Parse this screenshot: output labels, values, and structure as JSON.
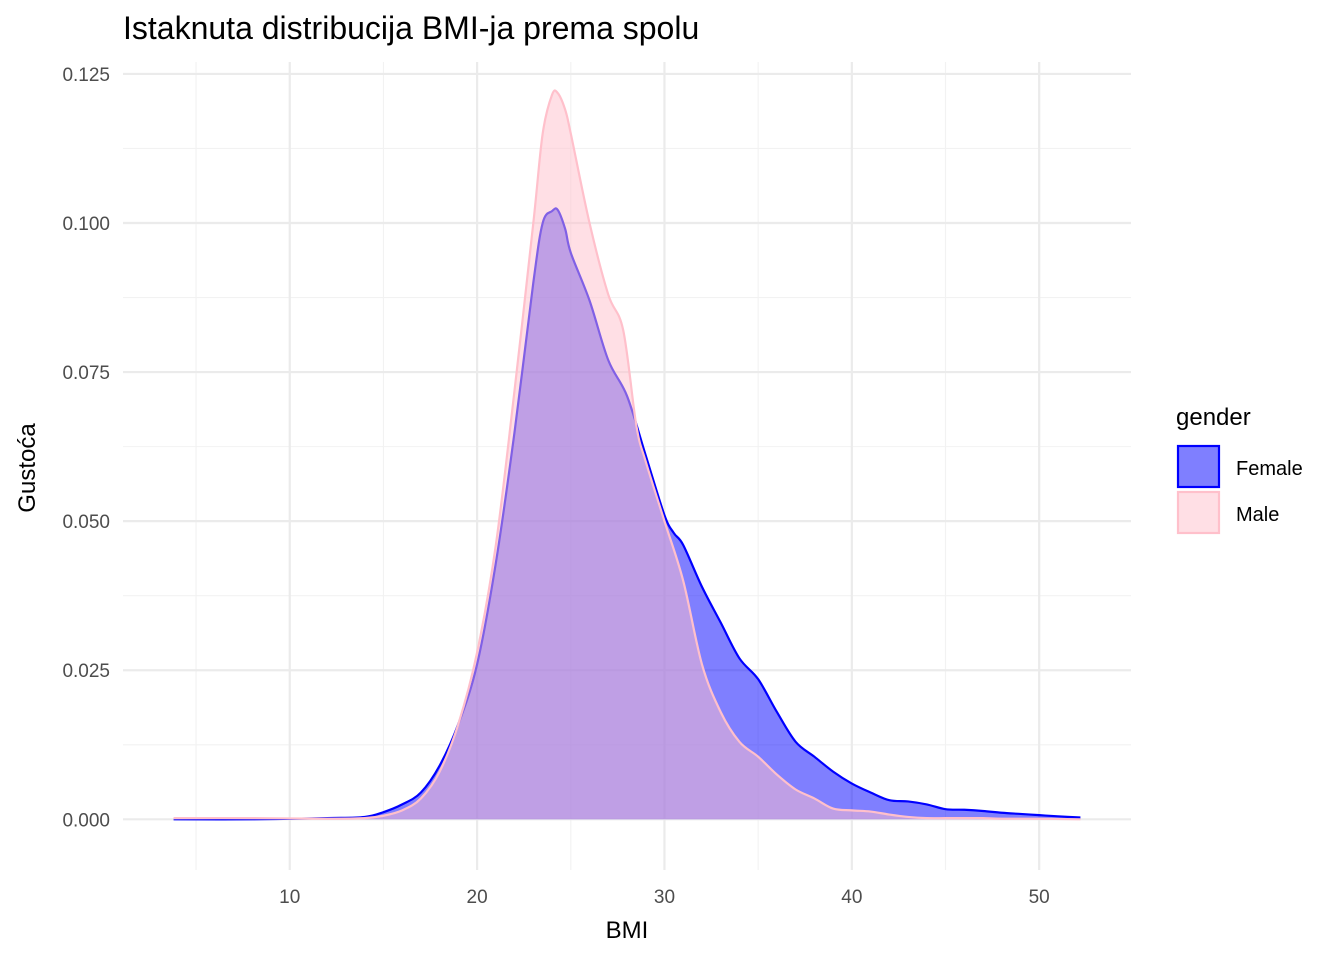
{
  "chart_data": {
    "type": "area",
    "title": "Istaknuta distribucija BMI-ja prema spolu",
    "xlabel": "BMI",
    "ylabel": "Gustoća",
    "xlim": [
      1.1,
      54.9
    ],
    "ylim": [
      -0.0085,
      0.127
    ],
    "x_ticks": [
      10,
      20,
      30,
      40,
      50
    ],
    "x_tick_labels": [
      "10",
      "20",
      "30",
      "40",
      "50"
    ],
    "y_ticks": [
      0,
      0.025,
      0.05,
      0.075,
      0.1,
      0.125
    ],
    "y_tick_labels": [
      "0.000",
      "0.025",
      "0.050",
      "0.075",
      "0.100",
      "0.125"
    ],
    "grid": true,
    "legend": {
      "title": "gender",
      "position": "right"
    },
    "series": [
      {
        "name": "Female",
        "color": "#0000ff",
        "fill": "#0000ff",
        "fill_opacity": 0.5,
        "x": [
          3.8,
          8,
          12,
          14,
          15,
          16,
          17,
          18,
          19,
          20,
          21,
          22,
          23,
          23.5,
          24,
          24.3,
          24.7,
          25,
          26,
          27,
          28,
          29,
          30,
          30.5,
          31,
          32,
          33,
          34,
          35,
          36,
          37,
          38,
          39,
          40,
          41,
          42,
          43,
          44,
          45,
          46,
          47,
          48,
          49,
          50,
          51,
          52.2
        ],
        "y": [
          0.0,
          0.0,
          0.0002,
          0.0004,
          0.0012,
          0.0025,
          0.0045,
          0.009,
          0.016,
          0.026,
          0.043,
          0.065,
          0.09,
          0.1,
          0.102,
          0.1022,
          0.099,
          0.095,
          0.087,
          0.077,
          0.071,
          0.061,
          0.051,
          0.048,
          0.046,
          0.039,
          0.033,
          0.027,
          0.0235,
          0.018,
          0.013,
          0.0105,
          0.008,
          0.006,
          0.0045,
          0.0032,
          0.003,
          0.0025,
          0.0017,
          0.0016,
          0.0014,
          0.0011,
          0.0009,
          0.0007,
          0.0005,
          0.0003
        ]
      },
      {
        "name": "Male",
        "color": "#ffc0cb",
        "fill": "#ffc0cb",
        "fill_opacity": 0.5,
        "x": [
          3.8,
          8,
          12,
          14,
          15,
          16,
          17,
          18,
          19,
          20,
          21,
          22,
          23,
          23.5,
          24,
          24.3,
          24.7,
          25,
          26,
          27,
          27.8,
          28.5,
          29,
          30,
          31,
          32,
          33,
          34,
          35,
          36,
          37,
          38,
          39,
          40,
          41,
          42,
          43,
          44,
          45,
          46,
          47,
          48,
          50,
          52.2
        ],
        "y": [
          0.0002,
          0.0002,
          0.0001,
          0.0002,
          0.0006,
          0.0015,
          0.0035,
          0.008,
          0.016,
          0.028,
          0.046,
          0.072,
          0.1,
          0.115,
          0.1215,
          0.1218,
          0.119,
          0.115,
          0.1,
          0.088,
          0.082,
          0.066,
          0.06,
          0.05,
          0.04,
          0.026,
          0.018,
          0.013,
          0.0105,
          0.0075,
          0.005,
          0.0035,
          0.0018,
          0.0015,
          0.0013,
          0.0008,
          0.0004,
          0.0002,
          0.0002,
          0.0002,
          0.0002,
          0.0001,
          0.0001,
          0.0
        ]
      }
    ]
  }
}
